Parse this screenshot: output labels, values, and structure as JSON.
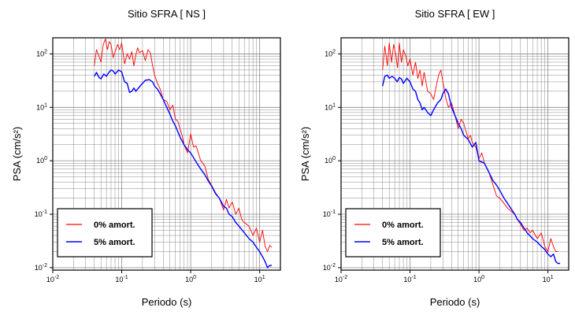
{
  "chart_data": [
    {
      "type": "line",
      "title": "Sitio SFRA [ NS ]",
      "xlabel": "Periodo (s)",
      "ylabel": "PSA (cm/s²)",
      "xscale": "log",
      "yscale": "log",
      "xlim": [
        0.01,
        20
      ],
      "ylim": [
        0.009,
        200
      ],
      "grid": true,
      "legend_position": "bottom-left",
      "xticks": [
        {
          "value": 0.01,
          "mant": "10",
          "exp": "-2"
        },
        {
          "value": 0.1,
          "mant": "10",
          "exp": "-1"
        },
        {
          "value": 1,
          "mant": "10",
          "exp": "0"
        },
        {
          "value": 10,
          "mant": "10",
          "exp": "1"
        }
      ],
      "yticks": [
        {
          "value": 0.01,
          "mant": "10",
          "exp": "-2"
        },
        {
          "value": 0.1,
          "mant": "10",
          "exp": "-1"
        },
        {
          "value": 1,
          "mant": "10",
          "exp": "0"
        },
        {
          "value": 10,
          "mant": "10",
          "exp": "1"
        },
        {
          "value": 100,
          "mant": "10",
          "exp": "2"
        }
      ],
      "series": [
        {
          "name": "0% amort.",
          "color": "#ff0000",
          "x": [
            0.04,
            0.043,
            0.047,
            0.05,
            0.054,
            0.058,
            0.062,
            0.066,
            0.07,
            0.075,
            0.08,
            0.087,
            0.093,
            0.1,
            0.11,
            0.12,
            0.13,
            0.14,
            0.15,
            0.16,
            0.17,
            0.18,
            0.2,
            0.22,
            0.24,
            0.26,
            0.28,
            0.3,
            0.33,
            0.36,
            0.4,
            0.45,
            0.5,
            0.55,
            0.6,
            0.65,
            0.7,
            0.75,
            0.8,
            0.9,
            1.0,
            1.1,
            1.2,
            1.4,
            1.6,
            1.8,
            2.0,
            2.3,
            2.6,
            3.0,
            3.3,
            3.6,
            4.0,
            4.5,
            5.0,
            5.5,
            6.0,
            7.0,
            8.0,
            9.0,
            10.0,
            11.0,
            12.0,
            13.0,
            14.0,
            15.0
          ],
          "y": [
            60,
            120,
            90,
            70,
            150,
            190,
            120,
            170,
            150,
            85,
            110,
            150,
            120,
            160,
            65,
            100,
            80,
            110,
            60,
            95,
            130,
            105,
            115,
            75,
            120,
            105,
            60,
            40,
            28,
            22,
            14,
            13,
            9,
            11,
            6,
            5.5,
            4,
            3,
            2,
            1.4,
            3.2,
            1.8,
            1.9,
            1.0,
            0.8,
            0.45,
            0.35,
            0.25,
            0.2,
            0.12,
            0.19,
            0.13,
            0.17,
            0.1,
            0.13,
            0.08,
            0.07,
            0.06,
            0.04,
            0.055,
            0.03,
            0.05,
            0.025,
            0.02,
            0.026,
            0.024
          ]
        },
        {
          "name": "5% amort.",
          "color": "#0000ff",
          "x": [
            0.04,
            0.043,
            0.047,
            0.05,
            0.055,
            0.06,
            0.065,
            0.07,
            0.075,
            0.08,
            0.09,
            0.1,
            0.11,
            0.12,
            0.13,
            0.14,
            0.15,
            0.16,
            0.18,
            0.2,
            0.22,
            0.25,
            0.28,
            0.3,
            0.33,
            0.36,
            0.4,
            0.45,
            0.5,
            0.55,
            0.6,
            0.7,
            0.8,
            0.9,
            1.0,
            1.2,
            1.4,
            1.6,
            1.8,
            2.0,
            2.3,
            2.6,
            3.0,
            3.3,
            3.6,
            4.0,
            4.5,
            5.0,
            6.0,
            7.0,
            8.0,
            9.0,
            10.0,
            11.0,
            12.0,
            13.0,
            14.0,
            15.0
          ],
          "y": [
            38,
            45,
            36,
            34,
            42,
            38,
            45,
            50,
            48,
            42,
            50,
            46,
            30,
            28,
            19,
            20,
            23,
            20,
            24,
            28,
            32,
            33,
            30,
            25,
            22,
            18,
            14,
            10,
            7.5,
            5.5,
            4.5,
            2.8,
            2.0,
            1.6,
            1.4,
            0.95,
            0.7,
            0.55,
            0.42,
            0.34,
            0.24,
            0.2,
            0.14,
            0.13,
            0.1,
            0.09,
            0.07,
            0.06,
            0.045,
            0.035,
            0.03,
            0.024,
            0.02,
            0.016,
            0.013,
            0.01,
            0.011,
            0.011
          ]
        }
      ]
    },
    {
      "type": "line",
      "title": "Sitio SFRA [ EW ]",
      "xlabel": "Periodo (s)",
      "ylabel": "PSA (cm/s²)",
      "xscale": "log",
      "yscale": "log",
      "xlim": [
        0.01,
        20
      ],
      "ylim": [
        0.009,
        200
      ],
      "grid": true,
      "legend_position": "bottom-left",
      "xticks": [
        {
          "value": 0.01,
          "mant": "10",
          "exp": "-2"
        },
        {
          "value": 0.1,
          "mant": "10",
          "exp": "-1"
        },
        {
          "value": 1,
          "mant": "10",
          "exp": "0"
        },
        {
          "value": 10,
          "mant": "10",
          "exp": "1"
        }
      ],
      "yticks": [
        {
          "value": 0.01,
          "mant": "10",
          "exp": "-2"
        },
        {
          "value": 0.1,
          "mant": "10",
          "exp": "-1"
        },
        {
          "value": 1,
          "mant": "10",
          "exp": "0"
        },
        {
          "value": 10,
          "mant": "10",
          "exp": "1"
        },
        {
          "value": 100,
          "mant": "10",
          "exp": "2"
        }
      ],
      "series": [
        {
          "name": "0% amort.",
          "color": "#ff0000",
          "x": [
            0.04,
            0.043,
            0.047,
            0.05,
            0.054,
            0.058,
            0.062,
            0.066,
            0.07,
            0.075,
            0.08,
            0.087,
            0.093,
            0.1,
            0.11,
            0.12,
            0.13,
            0.14,
            0.15,
            0.16,
            0.17,
            0.18,
            0.2,
            0.22,
            0.24,
            0.26,
            0.28,
            0.3,
            0.33,
            0.36,
            0.4,
            0.45,
            0.5,
            0.55,
            0.6,
            0.65,
            0.7,
            0.75,
            0.8,
            0.9,
            1.0,
            1.1,
            1.2,
            1.4,
            1.6,
            1.8,
            2.0,
            2.3,
            2.6,
            3.0,
            3.3,
            3.6,
            4.0,
            4.5,
            5.0,
            5.5,
            6.0,
            7.0,
            8.0,
            9.0,
            10.0,
            11.0,
            12.0,
            13.0,
            14.0
          ],
          "y": [
            50,
            140,
            60,
            160,
            70,
            150,
            100,
            55,
            160,
            70,
            120,
            90,
            60,
            80,
            40,
            70,
            35,
            50,
            25,
            45,
            30,
            20,
            18,
            14,
            25,
            40,
            50,
            30,
            15,
            10,
            12,
            7,
            4,
            6,
            5,
            3.5,
            2.6,
            3,
            2.2,
            1.8,
            1.1,
            1.4,
            0.9,
            0.6,
            0.35,
            0.22,
            0.2,
            0.16,
            0.13,
            0.11,
            0.1,
            0.08,
            0.065,
            0.05,
            0.055,
            0.045,
            0.05,
            0.035,
            0.045,
            0.025,
            0.02,
            0.035,
            0.025,
            0.02,
            0.02
          ]
        },
        {
          "name": "5% amort.",
          "color": "#0000ff",
          "x": [
            0.04,
            0.043,
            0.047,
            0.05,
            0.055,
            0.06,
            0.065,
            0.07,
            0.075,
            0.08,
            0.09,
            0.1,
            0.11,
            0.12,
            0.13,
            0.14,
            0.15,
            0.16,
            0.18,
            0.2,
            0.22,
            0.25,
            0.28,
            0.3,
            0.33,
            0.36,
            0.4,
            0.45,
            0.5,
            0.55,
            0.6,
            0.7,
            0.8,
            0.9,
            1.0,
            1.2,
            1.4,
            1.6,
            1.8,
            2.0,
            2.3,
            2.6,
            3.0,
            3.3,
            3.6,
            4.0,
            4.5,
            5.0,
            6.0,
            7.0,
            8.0,
            9.0,
            10.0,
            11.0,
            12.0,
            13.0,
            14.0,
            15.0
          ],
          "y": [
            25,
            38,
            40,
            35,
            38,
            35,
            30,
            36,
            34,
            28,
            35,
            30,
            22,
            20,
            14,
            12,
            9,
            10,
            8,
            7,
            9,
            12,
            14,
            18,
            22,
            18,
            10,
            7,
            5,
            4,
            3,
            2.5,
            1.8,
            2.2,
            1.0,
            0.9,
            0.6,
            0.42,
            0.35,
            0.28,
            0.2,
            0.16,
            0.12,
            0.1,
            0.08,
            0.07,
            0.055,
            0.045,
            0.035,
            0.03,
            0.025,
            0.022,
            0.018,
            0.016,
            0.018,
            0.013,
            0.012,
            0.012
          ]
        }
      ]
    }
  ]
}
